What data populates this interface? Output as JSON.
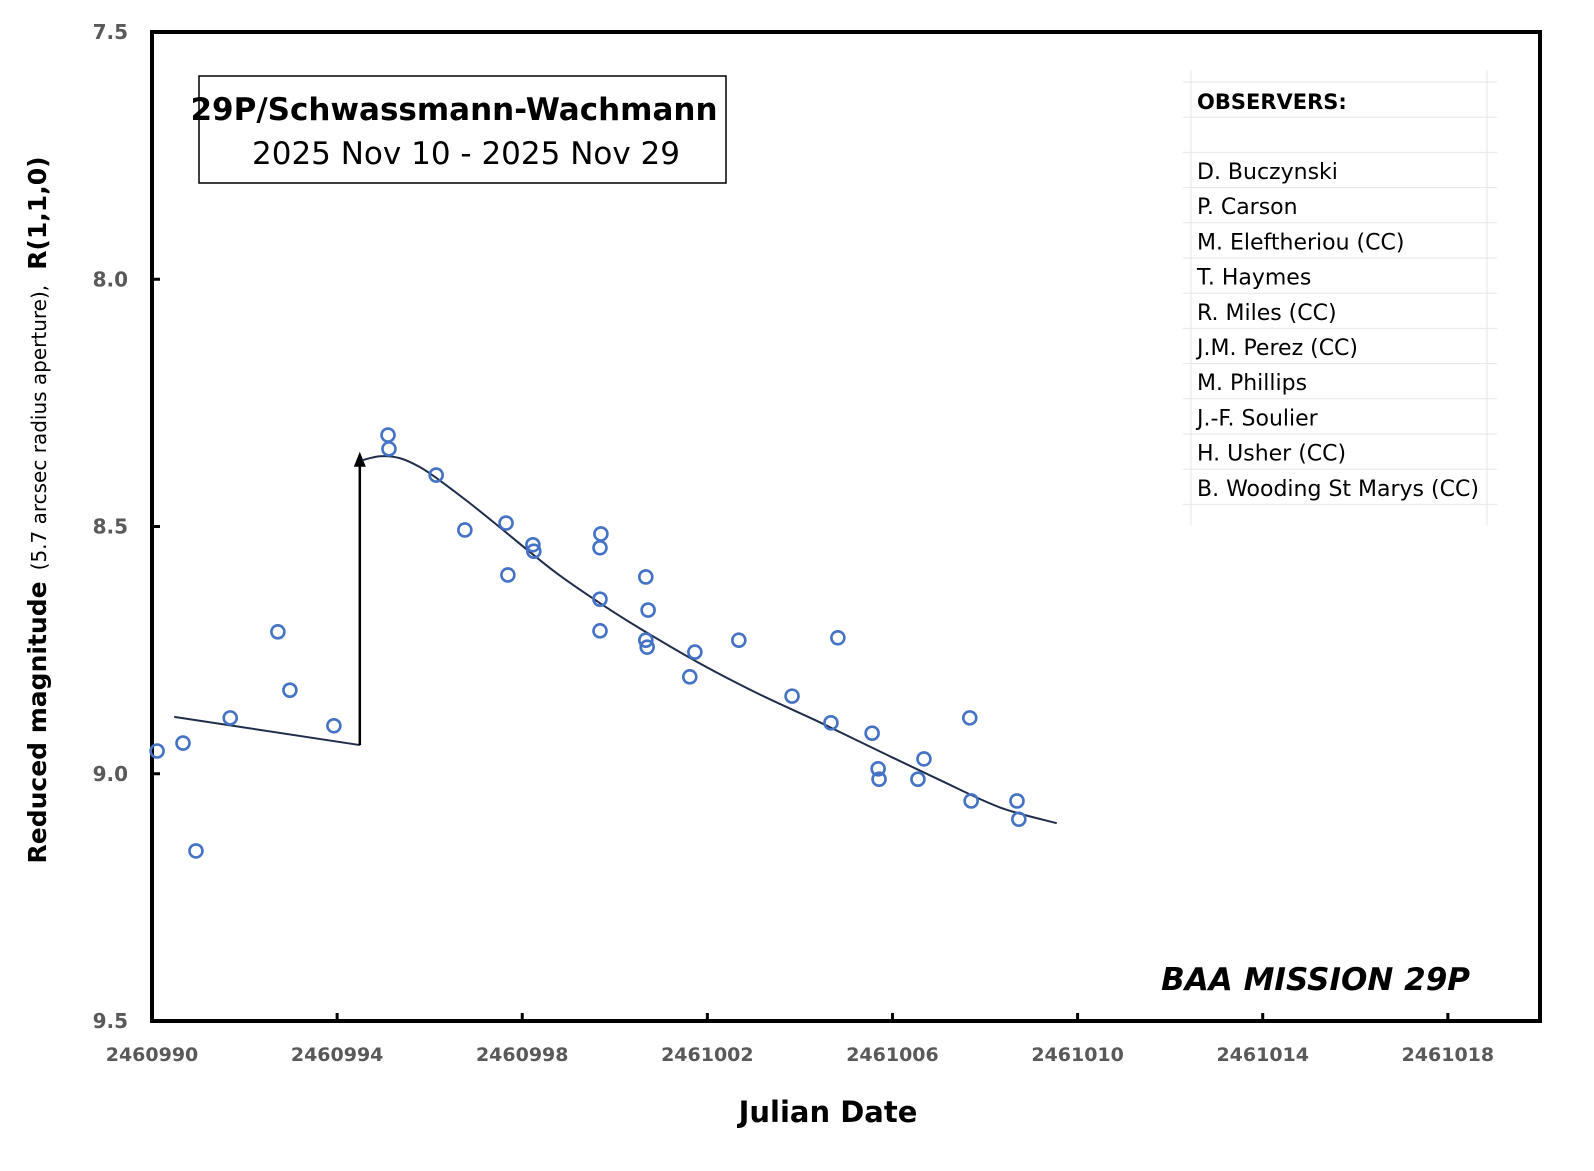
{
  "chart_data": {
    "type": "scatter",
    "title": "29P/Schwassmann-Wachmann",
    "subtitle": "2025 Nov 10 - 2025 Nov 29",
    "xlabel": "Julian Date",
    "ylabel_main": "Reduced magnitude",
    "ylabel_note": "(5.7 arcsec radius aperture),",
    "ylabel_suffix": "R(1,1,0)",
    "xlim": [
      2460990,
      2461020
    ],
    "ylim": [
      7.5,
      9.5
    ],
    "y_inverted": true,
    "x_ticks": [
      2460990,
      2460994,
      2460998,
      2461002,
      2461006,
      2461010,
      2461014,
      2461018
    ],
    "x_tick_labels": [
      "2460990",
      "2460994",
      "2460998",
      "2461002",
      "2461006",
      "2461010",
      "2461014",
      "2461018"
    ],
    "y_ticks": [
      7.5,
      8.0,
      8.5,
      9.0,
      9.5
    ],
    "y_tick_labels": [
      "7.5",
      "8.0",
      "8.5",
      "9.0",
      "9.5"
    ],
    "grid": false,
    "marker_color": "#4472C4",
    "line_color": "#1F2D4A",
    "points": [
      [
        2460990.11,
        8.954
      ],
      [
        2460990.67,
        8.938
      ],
      [
        2460990.95,
        9.156
      ],
      [
        2460991.69,
        8.887
      ],
      [
        2460992.72,
        8.713
      ],
      [
        2460992.98,
        8.831
      ],
      [
        2460993.93,
        8.903
      ],
      [
        2460995.1,
        8.315
      ],
      [
        2460995.12,
        8.343
      ],
      [
        2460996.14,
        8.396
      ],
      [
        2460996.76,
        8.507
      ],
      [
        2460997.65,
        8.493
      ],
      [
        2460997.69,
        8.598
      ],
      [
        2460998.23,
        8.537
      ],
      [
        2460998.25,
        8.55
      ],
      [
        2460999.7,
        8.515
      ],
      [
        2460999.68,
        8.543
      ],
      [
        2460999.68,
        8.647
      ],
      [
        2460999.68,
        8.711
      ],
      [
        2461000.67,
        8.602
      ],
      [
        2461000.72,
        8.669
      ],
      [
        2461000.67,
        8.73
      ],
      [
        2461000.7,
        8.744
      ],
      [
        2461001.73,
        8.754
      ],
      [
        2461001.62,
        8.804
      ],
      [
        2461002.68,
        8.73
      ],
      [
        2461003.83,
        8.843
      ],
      [
        2461004.82,
        8.725
      ],
      [
        2461004.67,
        8.897
      ],
      [
        2461005.56,
        8.918
      ],
      [
        2461005.69,
        8.99
      ],
      [
        2461005.71,
        9.011
      ],
      [
        2461006.55,
        9.011
      ],
      [
        2461006.68,
        8.97
      ],
      [
        2461007.67,
        8.887
      ],
      [
        2461007.7,
        9.055
      ],
      [
        2461008.69,
        9.055
      ],
      [
        2461008.73,
        9.092
      ]
    ],
    "pre_outburst_trend": [
      [
        2460990.48,
        8.885
      ],
      [
        2460994.49,
        8.942
      ]
    ],
    "outburst_arrow": {
      "x": 2460994.49,
      "from": 8.942,
      "to": 8.355
    },
    "post_outburst_fit": [
      [
        2460994.54,
        8.366
      ],
      [
        2460994.93,
        8.358
      ],
      [
        2460995.36,
        8.362
      ],
      [
        2460995.79,
        8.38
      ],
      [
        2460996.22,
        8.407
      ],
      [
        2460996.87,
        8.453
      ],
      [
        2460997.52,
        8.502
      ],
      [
        2460998.17,
        8.552
      ],
      [
        2460998.81,
        8.599
      ],
      [
        2460999.68,
        8.655
      ],
      [
        2461000.54,
        8.706
      ],
      [
        2461001.84,
        8.777
      ],
      [
        2461003.14,
        8.84
      ],
      [
        2461004.43,
        8.896
      ],
      [
        2461005.73,
        8.955
      ],
      [
        2461007.03,
        9.013
      ],
      [
        2461008.32,
        9.068
      ],
      [
        2461009.55,
        9.1
      ]
    ],
    "legend": {
      "header": "OBSERVERS:",
      "placement": "top-right",
      "entries": [
        "D. Buczynski",
        "P. Carson",
        "M. Eleftheriou (CC)",
        "T. Haymes",
        "R. Miles (CC)",
        "J.M. Perez (CC)",
        "M. Phillips",
        "J.-F. Soulier",
        "H. Usher (CC)",
        "B. Wooding St Marys (CC)"
      ]
    },
    "annotation": "BAA MISSION 29P"
  }
}
